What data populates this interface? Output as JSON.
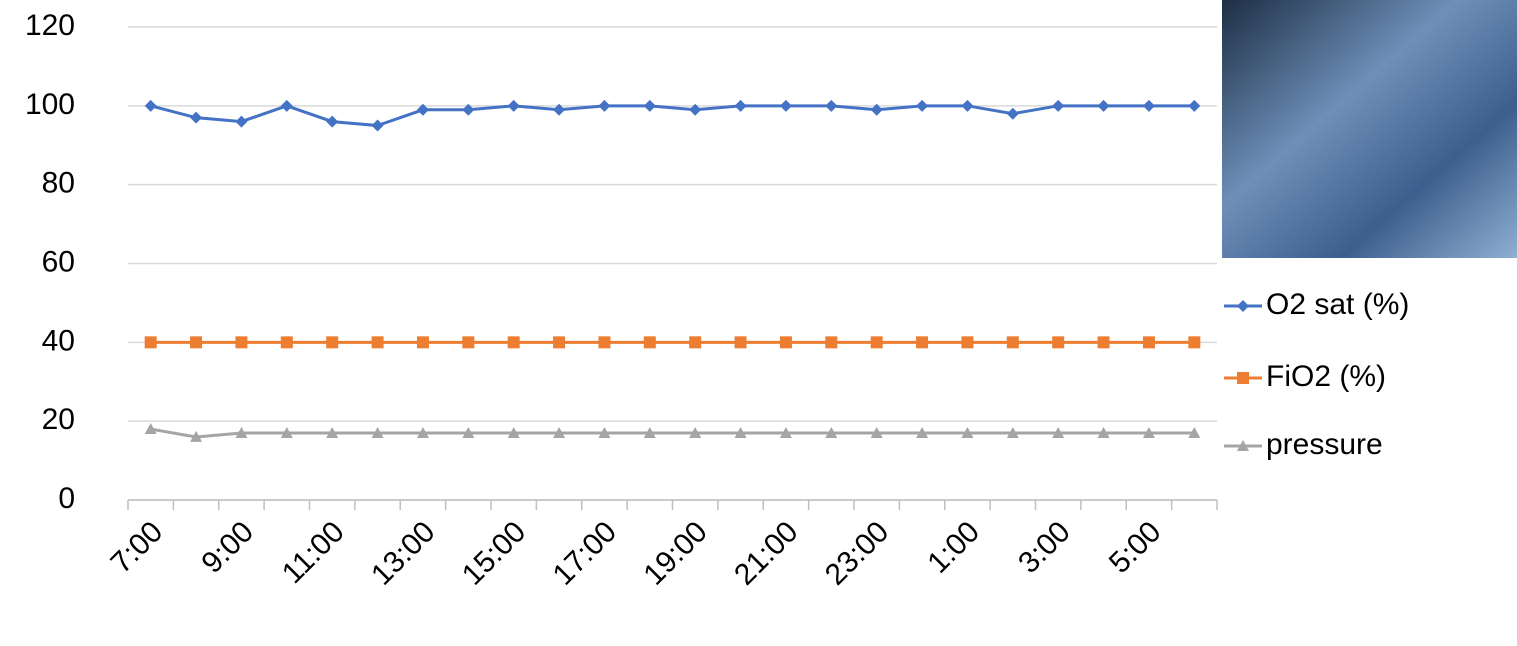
{
  "chart_data": {
    "type": "line",
    "categories": [
      "7:00",
      null,
      "9:00",
      null,
      "11:00",
      null,
      "13:00",
      null,
      "15:00",
      null,
      "17:00",
      null,
      "19:00",
      null,
      "21:00",
      null,
      "23:00",
      null,
      "1:00",
      null,
      "3:00",
      null,
      "5:00",
      null
    ],
    "series": [
      {
        "name": "O2 sat (%)",
        "color": "#4472c4",
        "marker": "diamond",
        "values": [
          100,
          97,
          96,
          100,
          96,
          95,
          99,
          99,
          100,
          99,
          100,
          100,
          99,
          100,
          100,
          100,
          99,
          100,
          100,
          98,
          100,
          100,
          100,
          100
        ]
      },
      {
        "name": "FiO2 (%)",
        "color": "#ed7d31",
        "marker": "square",
        "values": [
          40,
          40,
          40,
          40,
          40,
          40,
          40,
          40,
          40,
          40,
          40,
          40,
          40,
          40,
          40,
          40,
          40,
          40,
          40,
          40,
          40,
          40,
          40,
          40
        ]
      },
      {
        "name": "pressure",
        "color": "#a5a5a5",
        "marker": "triangle",
        "values": [
          18,
          16,
          17,
          17,
          17,
          17,
          17,
          17,
          17,
          17,
          17,
          17,
          17,
          17,
          17,
          17,
          17,
          17,
          17,
          17,
          17,
          17,
          17,
          17
        ]
      }
    ],
    "ylim": [
      0,
      120
    ],
    "yticks": [
      0,
      20,
      40,
      60,
      80,
      100,
      120
    ],
    "grid": true,
    "legend": "right"
  }
}
